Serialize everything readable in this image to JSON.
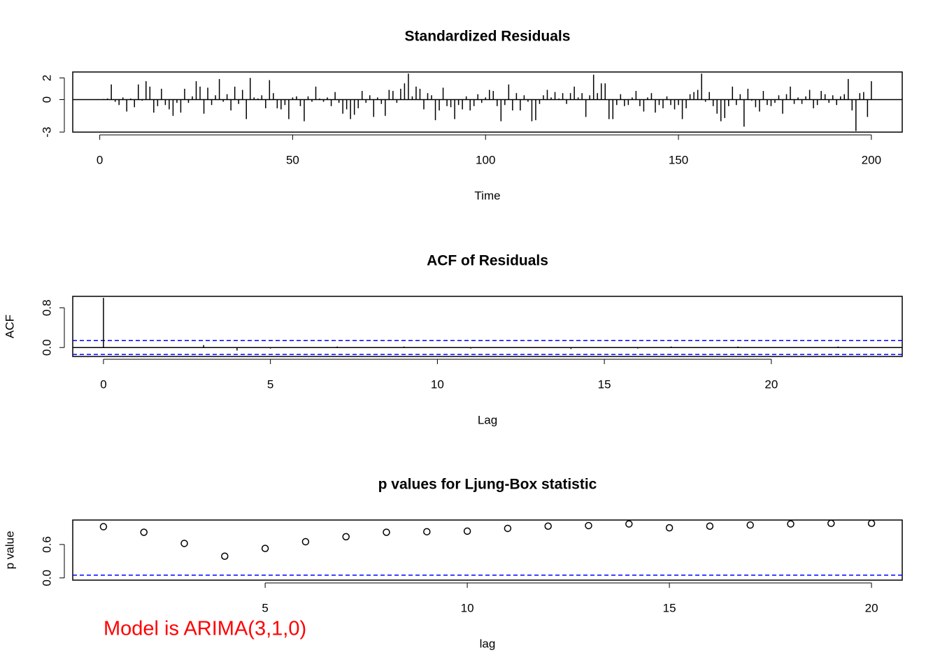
{
  "chart_data": [
    {
      "type": "spike",
      "title": "Standardized Residuals",
      "x_label": "Time",
      "color": "#000000",
      "xlim": [
        -7,
        208
      ],
      "ylim": [
        -3.0,
        2.55
      ],
      "xticks": [
        0,
        50,
        100,
        150,
        200
      ],
      "yticks": [
        -3,
        0,
        2
      ],
      "zero_line": true,
      "x": [
        1,
        2,
        3,
        4,
        5,
        6,
        7,
        8,
        9,
        10,
        11,
        12,
        13,
        14,
        15,
        16,
        17,
        18,
        19,
        20,
        21,
        22,
        23,
        24,
        25,
        26,
        27,
        28,
        29,
        30,
        31,
        32,
        33,
        34,
        35,
        36,
        37,
        38,
        39,
        40,
        41,
        42,
        43,
        44,
        45,
        46,
        47,
        48,
        49,
        50,
        51,
        52,
        53,
        54,
        55,
        56,
        57,
        58,
        59,
        60,
        61,
        62,
        63,
        64,
        65,
        66,
        67,
        68,
        69,
        70,
        71,
        72,
        73,
        74,
        75,
        76,
        77,
        78,
        79,
        80,
        81,
        82,
        83,
        84,
        85,
        86,
        87,
        88,
        89,
        90,
        91,
        92,
        93,
        94,
        95,
        96,
        97,
        98,
        99,
        100,
        101,
        102,
        103,
        104,
        105,
        106,
        107,
        108,
        109,
        110,
        111,
        112,
        113,
        114,
        115,
        116,
        117,
        118,
        119,
        120,
        121,
        122,
        123,
        124,
        125,
        126,
        127,
        128,
        129,
        130,
        131,
        132,
        133,
        134,
        135,
        136,
        137,
        138,
        139,
        140,
        141,
        142,
        143,
        144,
        145,
        146,
        147,
        148,
        149,
        150,
        151,
        152,
        153,
        154,
        155,
        156,
        157,
        158,
        159,
        160,
        161,
        162,
        163,
        164,
        165,
        166,
        167,
        168,
        169,
        170,
        171,
        172,
        173,
        174,
        175,
        176,
        177,
        178,
        179,
        180,
        181,
        182,
        183,
        184,
        185,
        186,
        187,
        188,
        189,
        190,
        191,
        192,
        193,
        194,
        195,
        196,
        197,
        198,
        199,
        200
      ],
      "values": [
        0.05,
        0.1,
        1.4,
        -0.2,
        -0.5,
        0.2,
        -1.1,
        0.1,
        -0.7,
        1.4,
        -0.1,
        1.7,
        1.2,
        -1.2,
        -0.6,
        1.0,
        -0.5,
        -0.9,
        -1.5,
        -0.3,
        -1.2,
        1.0,
        -0.3,
        0.3,
        1.7,
        1.2,
        -1.3,
        1.1,
        -0.5,
        0.4,
        1.9,
        -0.2,
        0.5,
        -1.0,
        1.2,
        -0.4,
        0.9,
        -1.8,
        2.0,
        0.2,
        0.1,
        0.4,
        -0.8,
        1.8,
        0.6,
        -0.8,
        -0.9,
        -0.5,
        -1.8,
        0.2,
        0.3,
        -0.6,
        -2.0,
        0.3,
        -0.2,
        1.2,
        0.1,
        -0.2,
        0.2,
        -0.6,
        0.7,
        -0.3,
        -1.3,
        -0.9,
        -1.8,
        -1.4,
        -0.8,
        0.8,
        -0.3,
        0.4,
        -1.6,
        0.2,
        -0.4,
        -1.5,
        0.9,
        0.8,
        -0.3,
        1.0,
        1.5,
        2.4,
        0.3,
        1.2,
        1.0,
        -0.9,
        0.6,
        0.4,
        -1.9,
        -1.0,
        1.1,
        -0.6,
        -0.7,
        -1.8,
        -0.5,
        -0.9,
        0.3,
        -1.0,
        -0.6,
        0.5,
        -0.3,
        0.2,
        0.9,
        0.8,
        -0.6,
        -2.0,
        -0.5,
        1.4,
        -1.0,
        0.6,
        -1.0,
        0.4,
        -0.2,
        -2.0,
        -1.9,
        -0.4,
        0.4,
        0.9,
        0.2,
        0.7,
        0.1,
        0.6,
        -0.4,
        0.6,
        1.2,
        0.2,
        0.6,
        -1.6,
        0.4,
        2.3,
        0.6,
        1.5,
        1.5,
        -1.8,
        -1.8,
        -0.5,
        0.5,
        -0.6,
        -0.5,
        0.2,
        0.8,
        -0.6,
        -1.1,
        0.2,
        0.6,
        -1.2,
        -0.5,
        -0.8,
        0.3,
        -0.5,
        -0.9,
        -0.5,
        -1.8,
        -0.8,
        0.5,
        0.7,
        0.9,
        2.4,
        -0.2,
        0.7,
        -0.6,
        -1.3,
        -2.0,
        -1.7,
        -0.6,
        1.2,
        -0.5,
        0.5,
        -2.5,
        1.0,
        -0.1,
        -0.7,
        -1.1,
        0.8,
        -0.5,
        -0.6,
        -0.3,
        0.4,
        -1.3,
        0.5,
        1.2,
        -0.4,
        0.2,
        -0.4,
        0.3,
        0.9,
        -0.8,
        -0.5,
        0.8,
        0.5,
        -0.3,
        0.4,
        -0.5,
        0.3,
        0.5,
        1.9,
        -1.0,
        -2.9,
        0.6,
        0.7,
        -1.6,
        1.7
      ]
    },
    {
      "type": "spike",
      "title": "ACF of Residuals",
      "x_label": "Lag",
      "y_label": "ACF",
      "color": "#000000",
      "xlim": [
        -0.92,
        23.92
      ],
      "ylim": [
        -0.18,
        1.03
      ],
      "xticks": [
        0,
        5,
        10,
        15,
        20
      ],
      "yticks": [
        {
          "value": 0,
          "label": "0.0"
        },
        {
          "value": 0.8,
          "label": "0.8"
        }
      ],
      "zero_line": true,
      "hlines": [
        0.14,
        -0.14
      ],
      "hline_color": "#0000ff",
      "x": [
        0,
        1,
        2,
        3,
        4,
        5,
        6,
        7,
        8,
        9,
        10,
        11,
        12,
        13,
        14,
        15,
        16,
        17,
        18,
        19,
        20,
        21,
        22,
        23
      ],
      "values": [
        1.0,
        -0.01,
        0.0,
        0.05,
        -0.06,
        -0.02,
        0.01,
        0.02,
        -0.01,
        0.02,
        0.0,
        -0.02,
        0.01,
        0.0,
        -0.03,
        0.01,
        -0.02,
        0.02,
        0.0,
        0.02,
        -0.01,
        0.01,
        0.02,
        0.01
      ]
    },
    {
      "type": "scatter",
      "title": "p values for Ljung-Box statistic",
      "x_label": "lag",
      "y_label": "p value",
      "color": "#000000",
      "xlim": [
        0.24,
        20.76
      ],
      "ylim": [
        -0.04,
        1.04
      ],
      "xticks": [
        5,
        10,
        15,
        20
      ],
      "yticks": [
        {
          "value": 0,
          "label": "0.0"
        },
        {
          "value": 0.6,
          "label": "0.6"
        }
      ],
      "hlines": [
        0.05
      ],
      "hline_color": "#0000ff",
      "x": [
        1,
        2,
        3,
        4,
        5,
        6,
        7,
        8,
        9,
        10,
        11,
        12,
        13,
        14,
        15,
        16,
        17,
        18,
        19,
        20
      ],
      "values": [
        0.92,
        0.82,
        0.62,
        0.39,
        0.53,
        0.65,
        0.74,
        0.82,
        0.83,
        0.84,
        0.89,
        0.93,
        0.94,
        0.97,
        0.9,
        0.93,
        0.95,
        0.97,
        0.98,
        0.98
      ]
    }
  ],
  "annotation": "Model is ARIMA(3,1,0)"
}
